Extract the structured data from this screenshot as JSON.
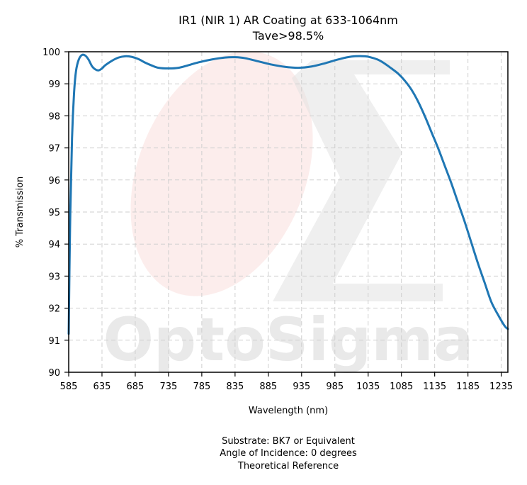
{
  "chart_data": {
    "type": "line",
    "title": [
      "IR1 (NIR 1) AR Coating at 633-1064nm",
      "Tave>98.5%"
    ],
    "xlabel": "Wavelength (nm)",
    "ylabel": "% Transmission",
    "xlim": [
      585,
      1245
    ],
    "ylim": [
      90,
      100
    ],
    "xticks": [
      585,
      635,
      685,
      735,
      785,
      835,
      885,
      935,
      985,
      1035,
      1085,
      1135,
      1185,
      1235
    ],
    "yticks": [
      90,
      91,
      92,
      93,
      94,
      95,
      96,
      97,
      98,
      99,
      100
    ],
    "grid": true,
    "series": [
      {
        "color": "#1f77b4",
        "x": [
          585,
          587,
          590,
          593,
          596,
          600,
          605,
          610,
          615,
          620,
          625,
          630,
          635,
          640,
          650,
          660,
          670,
          680,
          690,
          700,
          710,
          720,
          735,
          750,
          765,
          780,
          800,
          820,
          835,
          850,
          870,
          890,
          910,
          930,
          950,
          970,
          990,
          1010,
          1030,
          1040,
          1050,
          1060,
          1070,
          1080,
          1090,
          1100,
          1110,
          1120,
          1130,
          1140,
          1150,
          1160,
          1170,
          1180,
          1190,
          1200,
          1210,
          1220,
          1230,
          1240,
          1245
        ],
        "y": [
          91.2,
          94.5,
          97.3,
          98.7,
          99.4,
          99.75,
          99.9,
          99.88,
          99.75,
          99.55,
          99.45,
          99.42,
          99.48,
          99.58,
          99.72,
          99.82,
          99.86,
          99.84,
          99.77,
          99.66,
          99.57,
          99.5,
          99.48,
          99.5,
          99.58,
          99.67,
          99.76,
          99.82,
          99.83,
          99.8,
          99.7,
          99.6,
          99.53,
          99.5,
          99.54,
          99.64,
          99.76,
          99.85,
          99.86,
          99.82,
          99.75,
          99.63,
          99.48,
          99.32,
          99.1,
          98.82,
          98.45,
          98.0,
          97.5,
          97.0,
          96.45,
          95.9,
          95.3,
          94.7,
          94.05,
          93.4,
          92.8,
          92.2,
          91.8,
          91.45,
          91.35
        ]
      }
    ],
    "footnotes": [
      "Substrate: BK7 or Equivalent",
      "Angle of Incidence: 0 degrees",
      "Theoretical Reference"
    ],
    "watermark": "OptoSigma"
  }
}
